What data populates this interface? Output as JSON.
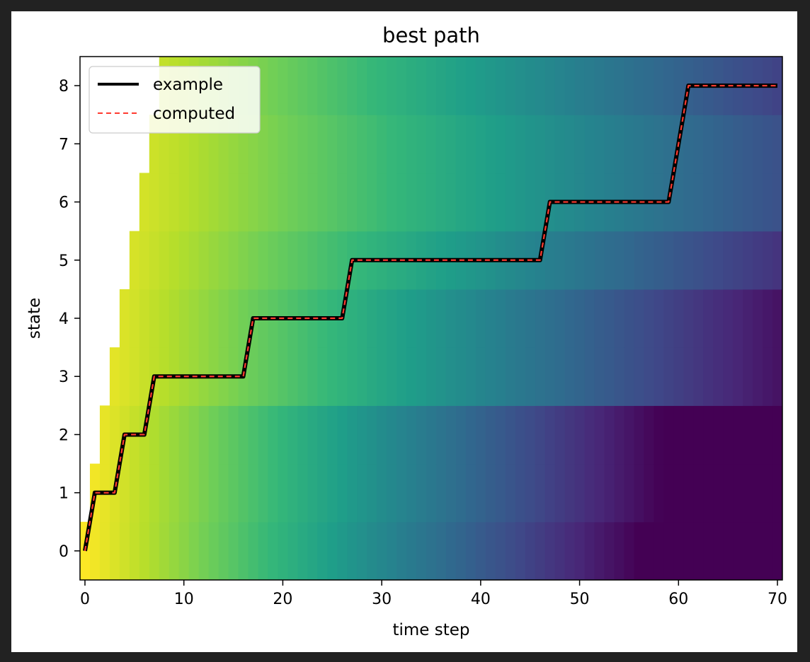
{
  "chart_data": {
    "type": "line",
    "title": "best path",
    "xlabel": "time step",
    "ylabel": "state",
    "xlim": [
      -0.5,
      70.5
    ],
    "ylim": [
      -0.5,
      8.5
    ],
    "xticks": [
      0,
      10,
      20,
      30,
      40,
      50,
      60,
      70
    ],
    "yticks": [
      0,
      1,
      2,
      3,
      4,
      5,
      6,
      7,
      8
    ],
    "grid": false,
    "legend_position": "upper-left",
    "colormap": "viridis",
    "background_heatmap": {
      "description_rows": "states 0..8, columns time steps 0..70; cells before each state's start step are blank",
      "row_start_step": [
        0,
        1,
        2,
        3,
        4,
        5,
        6,
        7,
        8
      ],
      "row_values": [
        [
          0.0,
          0.02,
          0.04,
          0.06,
          0.08,
          0.1,
          0.12,
          0.14,
          0.16,
          0.18,
          0.2,
          0.22,
          0.24,
          0.26,
          0.28,
          0.3,
          0.32,
          0.34,
          0.36,
          0.38,
          0.4,
          0.42,
          0.44,
          0.46,
          0.48,
          0.5,
          0.52,
          0.54,
          0.56,
          0.58,
          0.6,
          0.62,
          0.64,
          0.66,
          0.68,
          0.7,
          0.72,
          0.74,
          0.76,
          0.78,
          0.8,
          0.82,
          0.84,
          0.86,
          0.88,
          0.9,
          0.92,
          0.94,
          0.96,
          0.98,
          1.0,
          1.02,
          1.04,
          1.06,
          1.08,
          1.1,
          1.12,
          1.14,
          1.16,
          1.18,
          1.2,
          1.22,
          1.24,
          1.26,
          1.28,
          1.3,
          1.32,
          1.34,
          1.36,
          1.38,
          1.4
        ]
      ],
      "vmin": 0,
      "vmax": 1
    },
    "x": [
      0,
      1,
      3,
      4,
      6,
      7,
      16,
      17,
      26,
      27,
      46,
      47,
      59,
      61,
      70
    ],
    "series": [
      {
        "name": "example",
        "color": "#000000",
        "style": "solid",
        "values": [
          0,
          1,
          1,
          2,
          2,
          3,
          3,
          4,
          4,
          5,
          5,
          6,
          6,
          8,
          8
        ]
      },
      {
        "name": "computed",
        "color": "#ff3b30",
        "style": "dashed",
        "values": [
          0,
          1,
          1,
          2,
          2,
          3,
          3,
          4,
          4,
          5,
          5,
          6,
          6,
          8,
          8
        ]
      }
    ]
  }
}
